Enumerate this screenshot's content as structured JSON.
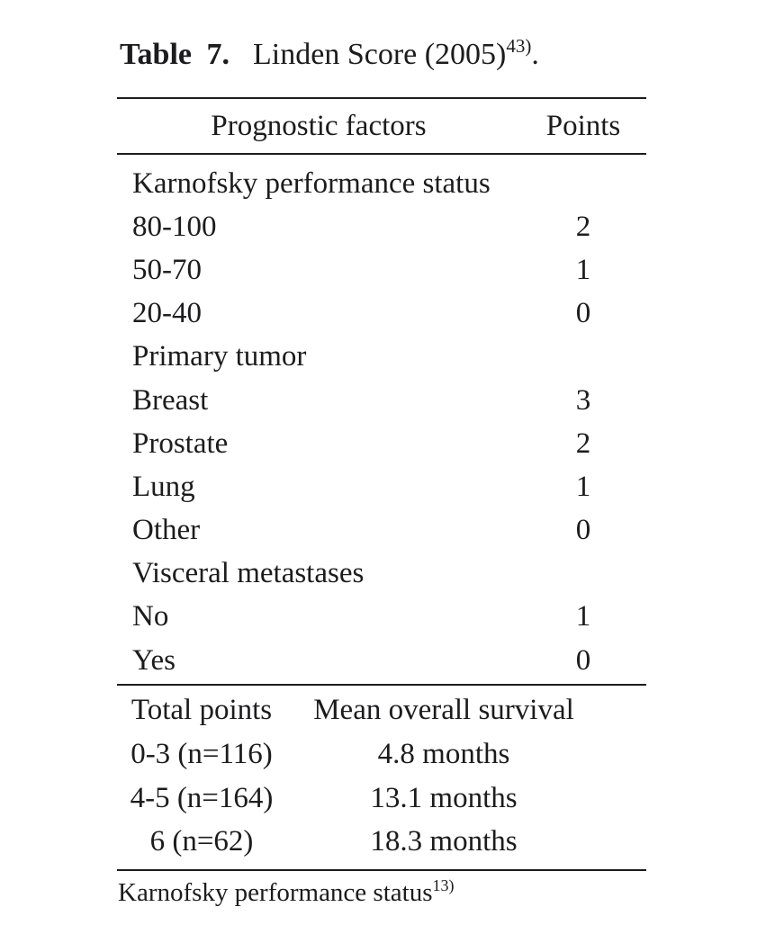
{
  "caption": {
    "label": "Table 7.",
    "title": "Linden Score (2005)",
    "reference_superscript": "43)",
    "suffix": "."
  },
  "score_table": {
    "header": {
      "factors": "Prognostic factors",
      "points": "Points"
    },
    "rows": [
      {
        "label": "Karnofsky performance status",
        "points": ""
      },
      {
        "label": "80-100",
        "points": "2"
      },
      {
        "label": "50-70",
        "points": "1"
      },
      {
        "label": "20-40",
        "points": "0"
      },
      {
        "label": "Primary tumor",
        "points": ""
      },
      {
        "label": "Breast",
        "points": "3"
      },
      {
        "label": "Prostate",
        "points": "2"
      },
      {
        "label": "Lung",
        "points": "1"
      },
      {
        "label": "Other",
        "points": "0"
      },
      {
        "label": "Visceral metastases",
        "points": ""
      },
      {
        "label": "No",
        "points": "1"
      },
      {
        "label": "Yes",
        "points": "0"
      }
    ]
  },
  "survival_table": {
    "header": {
      "total_points": "Total points",
      "survival": "Mean overall survival"
    },
    "rows": [
      {
        "total_points": "0-3 (n=116)",
        "survival": "4.8 months"
      },
      {
        "total_points": "4-5 (n=164)",
        "survival": "13.1 months"
      },
      {
        "total_points": "6 (n=62)",
        "survival": "18.3 months"
      }
    ]
  },
  "footnote": {
    "text": "Karnofsky performance status",
    "reference_superscript": "13)"
  },
  "colors": {
    "background": "#ffffff",
    "text": "#1c1c1e",
    "rule": "#1c1c1e"
  }
}
